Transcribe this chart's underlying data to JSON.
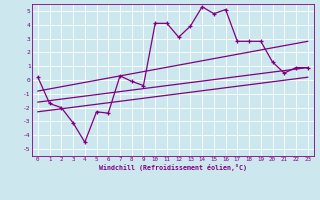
{
  "xlabel": "Windchill (Refroidissement éolien,°C)",
  "bg_color": "#cce8ee",
  "grid_color": "#ffffff",
  "line_color": "#800080",
  "xlim": [
    -0.5,
    23.5
  ],
  "ylim": [
    -5.5,
    5.5
  ],
  "yticks": [
    -5,
    -4,
    -3,
    -2,
    -1,
    0,
    1,
    2,
    3,
    4,
    5
  ],
  "xticks": [
    0,
    1,
    2,
    3,
    4,
    5,
    6,
    7,
    8,
    9,
    10,
    11,
    12,
    13,
    14,
    15,
    16,
    17,
    18,
    19,
    20,
    21,
    22,
    23
  ],
  "line1_x": [
    0,
    1,
    2,
    3,
    4,
    5,
    6,
    7,
    8,
    9,
    10,
    11,
    12,
    13,
    14,
    15,
    16,
    17,
    18,
    19,
    20,
    21,
    22,
    23
  ],
  "line1_y": [
    0.2,
    -1.7,
    -2.0,
    -3.1,
    -4.5,
    -2.3,
    -2.4,
    0.3,
    -0.1,
    -0.4,
    4.1,
    4.1,
    3.1,
    3.9,
    5.3,
    4.8,
    5.1,
    2.8,
    2.8,
    2.8,
    1.3,
    0.5,
    0.9,
    0.9
  ],
  "line2_x": [
    0,
    23
  ],
  "line2_y": [
    -1.6,
    0.9
  ],
  "line3_x": [
    0,
    23
  ],
  "line3_y": [
    -0.8,
    2.8
  ],
  "line4_x": [
    0,
    23
  ],
  "line4_y": [
    -2.3,
    0.2
  ]
}
